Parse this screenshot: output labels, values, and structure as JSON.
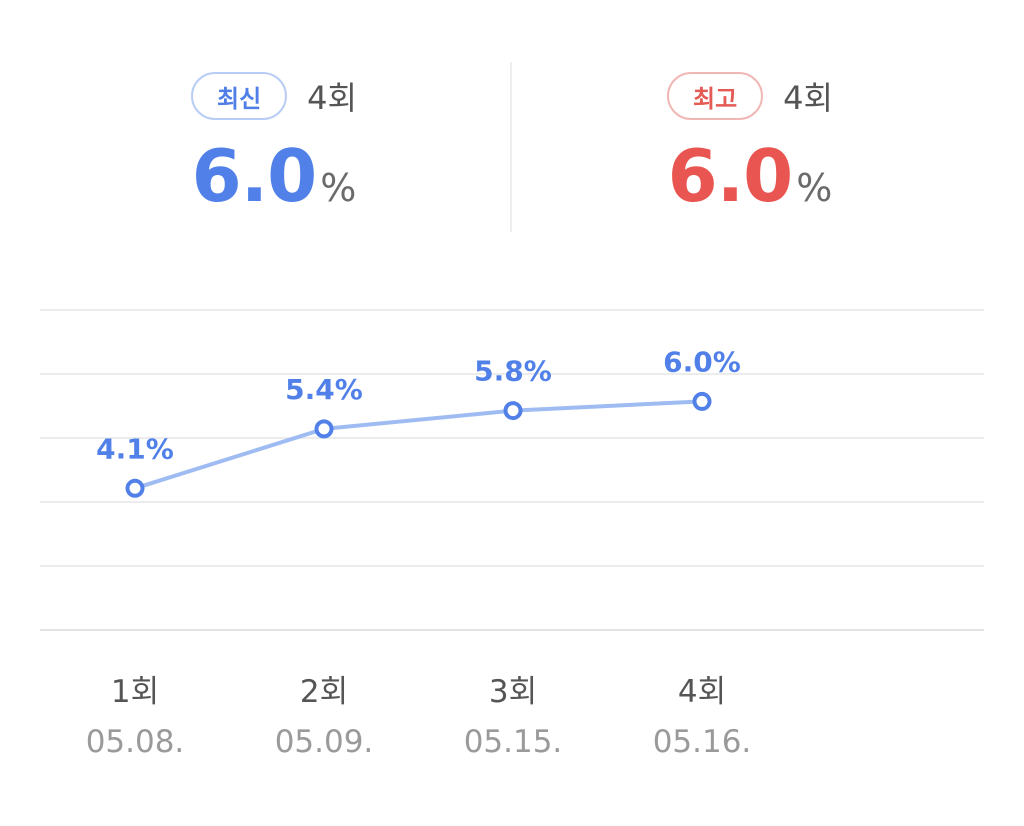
{
  "summary": {
    "latest": {
      "badge": "최신",
      "round": "4회",
      "value": "6.0",
      "unit": "%"
    },
    "best": {
      "badge": "최고",
      "round": "4회",
      "value": "6.0",
      "unit": "%"
    }
  },
  "colors": {
    "blue": "#5181e8",
    "red": "#e95652",
    "line": "#9fbcf2",
    "grid": "#ececec"
  },
  "chart_data": {
    "type": "line",
    "categories": [
      "1회",
      "2회",
      "3회",
      "4회"
    ],
    "dates": [
      "05.08.",
      "05.09.",
      "05.15.",
      "05.16."
    ],
    "series": [
      {
        "values": [
          4.1,
          5.4,
          5.8,
          6.0
        ],
        "labels": [
          "4.1%",
          "5.4%",
          "5.8%",
          "6.0%"
        ]
      }
    ],
    "ylim": [
      1.0,
      8.0
    ],
    "grid": true
  }
}
